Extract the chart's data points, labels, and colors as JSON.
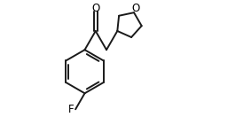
{
  "background_color": "#ffffff",
  "line_color": "#1a1a1a",
  "line_width": 1.4,
  "text_color": "#000000",
  "label_F": "F",
  "label_O_ketone": "O",
  "label_O_ring": "O",
  "font_size_labels": 8.5,
  "figsize": [
    2.83,
    1.41
  ],
  "dpi": 100,
  "xlim": [
    0.0,
    5.8
  ],
  "ylim": [
    -2.6,
    1.5
  ]
}
